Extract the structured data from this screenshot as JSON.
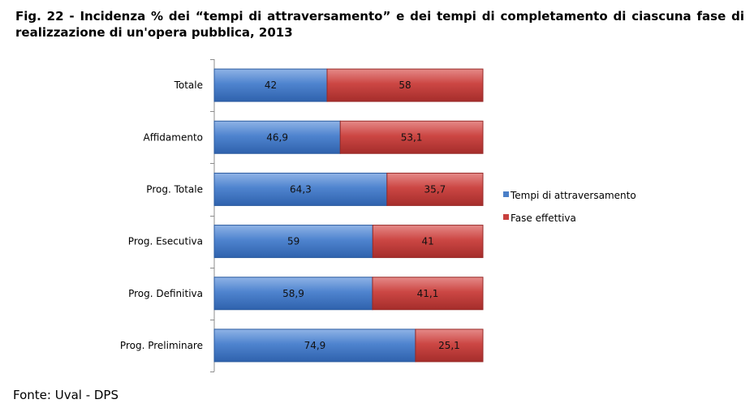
{
  "title": "Fig. 22 - Incidenza % dei “tempi di attraversamento” e dei tempi di completamento di ciascuna fase di realizzazione di un'opera pubblica, 2013",
  "source": "Fonte: Uval - DPS",
  "chart_data": {
    "type": "bar",
    "orientation": "horizontal",
    "stacked": true,
    "categories": [
      "Totale",
      "Affidamento",
      "Prog. Totale",
      "Prog. Esecutiva",
      "Prog. Definitiva",
      "Prog. Preliminare"
    ],
    "series": [
      {
        "name": "Tempi di attraversamento",
        "values": [
          42,
          46.9,
          64.3,
          59,
          58.9,
          74.9
        ],
        "labels": [
          "42",
          "46,9",
          "64,3",
          "59",
          "58,9",
          "74,9"
        ],
        "color": "#4a7fc8"
      },
      {
        "name": "Fase effettiva",
        "values": [
          58,
          53.1,
          35.7,
          41,
          41.1,
          25.1
        ],
        "labels": [
          "58",
          "53,1",
          "35,7",
          "41",
          "41,1",
          "25,1"
        ],
        "color": "#c8403e"
      }
    ],
    "xlim": [
      0,
      100
    ],
    "grid": false,
    "legend_position": "right"
  }
}
